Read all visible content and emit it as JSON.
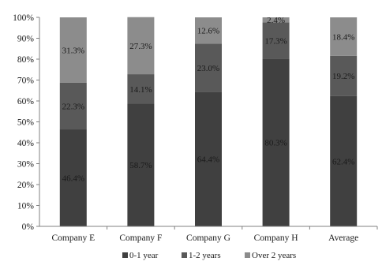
{
  "chart_data": {
    "type": "bar",
    "stacked": true,
    "percent_stacked": true,
    "categories": [
      "Company E",
      "Company F",
      "Company G",
      "Company H",
      "Average"
    ],
    "series": [
      {
        "name": "0-1 year",
        "values": [
          46.4,
          58.7,
          64.4,
          80.3,
          62.4
        ],
        "color": "#404040",
        "labels": [
          "46.4%",
          "58.7%",
          "64.4%",
          "80.3%",
          "62.4%"
        ]
      },
      {
        "name": "1-2 years",
        "values": [
          22.3,
          14.1,
          23.0,
          17.3,
          19.2
        ],
        "color": "#595959",
        "labels": [
          "22.3%",
          "14.1%",
          "23.0%",
          "17.3%",
          "19.2%"
        ]
      },
      {
        "name": "Over 2 years",
        "values": [
          31.3,
          27.3,
          12.6,
          2.4,
          18.4
        ],
        "color": "#8c8c8c",
        "labels": [
          "31.3%",
          "27.3%",
          "12.6%",
          "2.4%",
          "18.4%"
        ]
      }
    ],
    "yticks": [
      "0%",
      "10%",
      "20%",
      "30%",
      "40%",
      "50%",
      "60%",
      "70%",
      "80%",
      "90%",
      "100%"
    ],
    "ylim": [
      0,
      100
    ],
    "grid": false,
    "legend_position": "bottom"
  }
}
